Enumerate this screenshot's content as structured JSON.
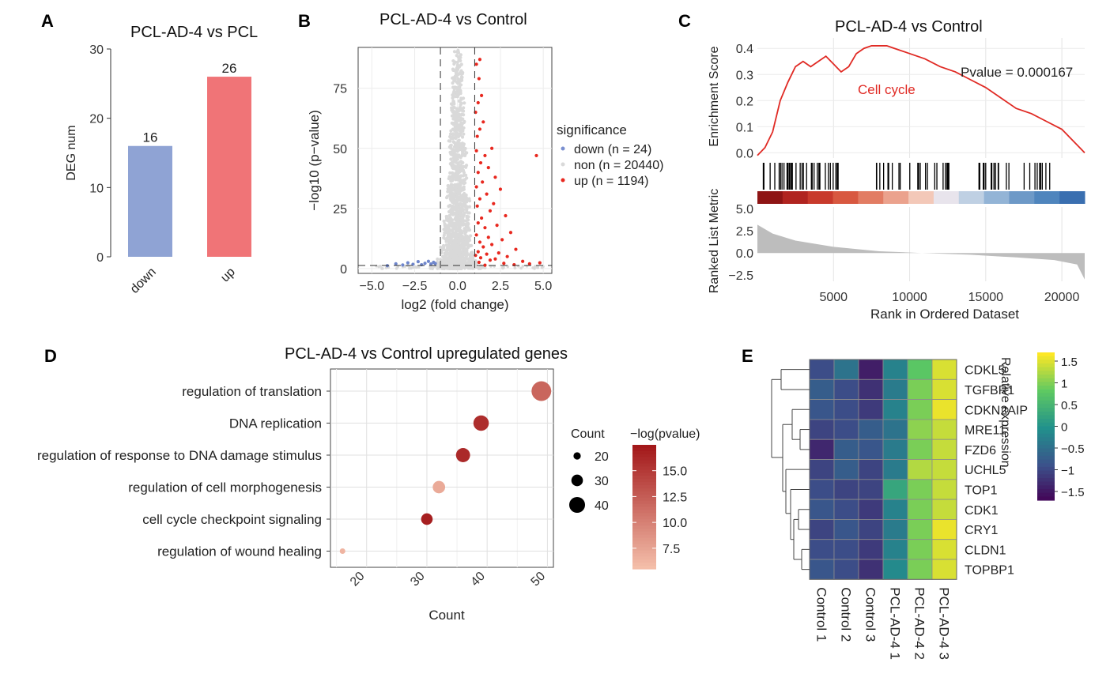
{
  "panels": {
    "A": {
      "letter": "A",
      "title": "PCL-AD-4 vs PCL"
    },
    "B": {
      "letter": "B",
      "title": "PCL-AD-4 vs Control"
    },
    "C": {
      "letter": "C",
      "title": "PCL-AD-4 vs Control"
    },
    "D": {
      "letter": "D",
      "title": "PCL-AD-4 vs Control upregulated genes"
    },
    "E": {
      "letter": "E",
      "title": ""
    }
  },
  "chart_data": [
    {
      "id": "A",
      "type": "bar",
      "title": "PCL-AD-4 vs PCL",
      "xlabel": "",
      "ylabel": "DEG num",
      "categories": [
        "down",
        "up"
      ],
      "values": [
        16,
        26
      ],
      "data_labels": [
        "16",
        "26"
      ],
      "colors": [
        "#8fa3d4",
        "#f07477"
      ],
      "ylim": [
        0,
        30
      ],
      "yticks": [
        0,
        10,
        20,
        30
      ],
      "ytick_labels": [
        "0",
        "10",
        "20",
        "30"
      ]
    },
    {
      "id": "B",
      "type": "scatter",
      "title": "PCL-AD-4 vs Control",
      "xlabel": "log2 (fold change)",
      "ylabel": "−log10 (p−value)",
      "xlim": [
        -5.8,
        5.5
      ],
      "ylim": [
        -2,
        92
      ],
      "xticks": [
        -5,
        -2.5,
        0,
        2.5,
        5
      ],
      "xtick_labels": [
        "−5.0",
        "−2.5",
        "0.0",
        "2.5",
        "5.0"
      ],
      "yticks": [
        0,
        25,
        50,
        75
      ],
      "ytick_labels": [
        "0",
        "25",
        "50",
        "75"
      ],
      "thresholds": {
        "log2fc": [
          -1,
          1
        ],
        "neglog10p": 1.3
      },
      "legend": {
        "title": "significance",
        "entries": [
          {
            "label": "down (n = 24)",
            "color": "#7a8fd0"
          },
          {
            "label": "non (n = 20440)",
            "color": "#d9d9d9"
          },
          {
            "label": "up (n = 1194)",
            "color": "#e8281f"
          }
        ]
      },
      "series": [
        {
          "name": "down",
          "color": "#6f86cc",
          "points": [
            [
              -4.1,
              1.2
            ],
            [
              -3.6,
              2.0
            ],
            [
              -3.2,
              1.5
            ],
            [
              -2.9,
              2.4
            ],
            [
              -2.6,
              1.8
            ],
            [
              -2.3,
              2.9
            ],
            [
              -2.1,
              1.6
            ],
            [
              -1.9,
              2.2
            ],
            [
              -1.7,
              3.0
            ],
            [
              -1.55,
              1.9
            ],
            [
              -1.4,
              2.6
            ],
            [
              -1.3,
              2.1
            ]
          ]
        },
        {
          "name": "up",
          "color": "#e8281f",
          "points": [
            [
              4.6,
              47
            ],
            [
              1.3,
              87
            ],
            [
              1.1,
              85
            ],
            [
              1.25,
              79
            ],
            [
              1.4,
              72
            ],
            [
              1.2,
              69
            ],
            [
              1.05,
              65
            ],
            [
              1.5,
              61
            ],
            [
              1.3,
              58
            ],
            [
              1.15,
              55
            ],
            [
              2.0,
              50
            ],
            [
              1.1,
              49
            ],
            [
              1.6,
              47
            ],
            [
              1.35,
              44
            ],
            [
              1.8,
              42
            ],
            [
              1.2,
              40
            ],
            [
              2.2,
              38
            ],
            [
              1.45,
              36
            ],
            [
              1.1,
              34
            ],
            [
              2.5,
              33
            ],
            [
              1.7,
              31
            ],
            [
              1.3,
              29
            ],
            [
              2.1,
              27
            ],
            [
              1.15,
              26
            ],
            [
              1.9,
              24
            ],
            [
              2.8,
              22
            ],
            [
              1.4,
              21
            ],
            [
              1.2,
              19
            ],
            [
              2.3,
              18
            ],
            [
              1.6,
              17
            ],
            [
              3.1,
              15
            ],
            [
              1.1,
              14
            ],
            [
              1.8,
              13
            ],
            [
              2.6,
              12
            ],
            [
              1.3,
              11
            ],
            [
              2.0,
              10
            ],
            [
              1.5,
              9
            ],
            [
              3.4,
              8
            ],
            [
              1.2,
              7
            ],
            [
              2.4,
              6.5
            ],
            [
              1.7,
              6
            ],
            [
              1.05,
              5.5
            ],
            [
              2.9,
              5
            ],
            [
              1.35,
              4.5
            ],
            [
              2.2,
              4
            ],
            [
              1.9,
              3.5
            ],
            [
              3.8,
              3
            ],
            [
              1.25,
              2.6
            ],
            [
              2.7,
              2.2
            ],
            [
              4.2,
              2.0
            ],
            [
              3.3,
              1.6
            ],
            [
              1.6,
              1.4
            ],
            [
              4.8,
              2.4
            ]
          ]
        }
      ]
    },
    {
      "id": "C",
      "type": "line",
      "title": "PCL-AD-4 vs Control",
      "xlabel": "Rank in Ordered Dataset",
      "annotation": "Pvalue = 0.000167",
      "gene_set": "Cell cycle",
      "xlim": [
        0,
        21500
      ],
      "xticks": [
        5000,
        10000,
        15000,
        20000
      ],
      "xtick_labels": [
        "5000",
        "10000",
        "15000",
        "20000"
      ],
      "enrichment": {
        "ylabel": "Enrichment Score",
        "ylim": [
          -0.02,
          0.44
        ],
        "yticks": [
          0.0,
          0.1,
          0.2,
          0.3,
          0.4
        ],
        "ytick_labels": [
          "0.0",
          "0.1",
          "0.2",
          "0.3",
          "0.4"
        ],
        "x": [
          0,
          500,
          1000,
          1500,
          2000,
          2500,
          3000,
          3500,
          4000,
          4500,
          5000,
          5500,
          6000,
          6500,
          7000,
          7500,
          8000,
          8500,
          9000,
          10000,
          11000,
          12000,
          13000,
          14000,
          15000,
          16000,
          17000,
          18000,
          19000,
          20000,
          21500
        ],
        "y": [
          -0.01,
          0.02,
          0.08,
          0.2,
          0.27,
          0.33,
          0.35,
          0.33,
          0.35,
          0.37,
          0.34,
          0.31,
          0.33,
          0.38,
          0.4,
          0.41,
          0.41,
          0.41,
          0.4,
          0.38,
          0.36,
          0.33,
          0.31,
          0.28,
          0.25,
          0.21,
          0.17,
          0.15,
          0.12,
          0.09,
          0.0
        ]
      },
      "ranked_metric": {
        "ylabel": "Ranked List Metric",
        "ylim": [
          -3.2,
          5.2
        ],
        "yticks": [
          -2.5,
          0.0,
          2.5,
          5.0
        ],
        "ytick_labels": [
          "−2.5",
          "0.0",
          "2.5",
          "5.0"
        ],
        "x": [
          0,
          1000,
          2500,
          5000,
          8000,
          10800,
          14000,
          17000,
          19500,
          21000,
          21500
        ],
        "y": [
          3.2,
          2.2,
          1.4,
          0.7,
          0.2,
          0.0,
          -0.2,
          -0.5,
          -0.8,
          -1.3,
          -3.0
        ]
      }
    },
    {
      "id": "D",
      "type": "scatter",
      "title": "PCL-AD-4 vs Control upregulated genes",
      "xlabel": "Count",
      "xlim": [
        14,
        51
      ],
      "xticks": [
        20,
        30,
        40,
        50
      ],
      "xtick_labels": [
        "20",
        "30",
        "40",
        "50"
      ],
      "terms": [
        "regulation of translation",
        "DNA replication",
        "regulation of response to DNA damage stimulus",
        "regulation of cell morphogenesis",
        "cell cycle checkpoint signaling",
        "regulation of wound healing"
      ],
      "count": [
        49,
        39,
        36,
        32,
        30,
        16
      ],
      "neg_log_pvalue": [
        12.0,
        16.0,
        16.3,
        7.2,
        17.0,
        6.5
      ],
      "size_legend": {
        "title": "Count",
        "values": [
          20,
          30,
          40
        ],
        "labels": [
          "20",
          "30",
          "40"
        ]
      },
      "color_legend": {
        "title": "−log(pvalue)",
        "range": [
          5.5,
          17.5
        ],
        "ticks": [
          7.5,
          10.0,
          12.5,
          15.0
        ],
        "tick_labels": [
          "7.5",
          "10.0",
          "12.5",
          "15.0"
        ],
        "low_color": "#f6c2ad",
        "high_color": "#a3181a"
      }
    },
    {
      "id": "E",
      "type": "heatmap",
      "title": "",
      "rows": [
        "CDKL5",
        "TGFBR1",
        "CDKN2AIP",
        "MRE11",
        "FZD6",
        "UCHL5",
        "TOP1",
        "CDK1",
        "CRY1",
        "CLDN1",
        "TOPBP1"
      ],
      "columns": [
        "Control 1",
        "Control 2",
        "Control 3",
        "PCL-AD-4 1",
        "PCL-AD-4 2",
        "PCL-AD-4 3"
      ],
      "values": [
        [
          -0.9,
          -0.4,
          -1.4,
          -0.2,
          0.8,
          1.5
        ],
        [
          -0.7,
          -0.9,
          -1.2,
          -0.3,
          1.0,
          1.5
        ],
        [
          -0.8,
          -0.9,
          -1.1,
          -0.2,
          1.0,
          1.6
        ],
        [
          -1.0,
          -0.9,
          -0.7,
          -0.4,
          1.1,
          1.4
        ],
        [
          -1.3,
          -0.7,
          -0.8,
          -0.3,
          1.0,
          1.4
        ],
        [
          -1.0,
          -0.7,
          -1.0,
          -0.3,
          1.3,
          1.4
        ],
        [
          -0.9,
          -1.0,
          -1.0,
          0.3,
          1.0,
          1.4
        ],
        [
          -0.8,
          -0.9,
          -1.1,
          -0.2,
          1.0,
          1.4
        ],
        [
          -1.0,
          -0.8,
          -1.0,
          -0.3,
          1.0,
          1.6
        ],
        [
          -0.9,
          -0.9,
          -1.1,
          -0.2,
          1.0,
          1.5
        ],
        [
          -0.8,
          -0.9,
          -1.2,
          -0.1,
          1.0,
          1.5
        ]
      ],
      "colorbar": {
        "title": "Relative expression",
        "range": [
          -1.7,
          1.7
        ],
        "ticks": [
          1.5,
          1,
          0.5,
          0,
          -0.5,
          -1,
          -1.5
        ],
        "tick_labels": [
          "1.5",
          "1",
          "0.5",
          "0",
          "−0.5",
          "−1",
          "−1.5"
        ]
      }
    }
  ]
}
